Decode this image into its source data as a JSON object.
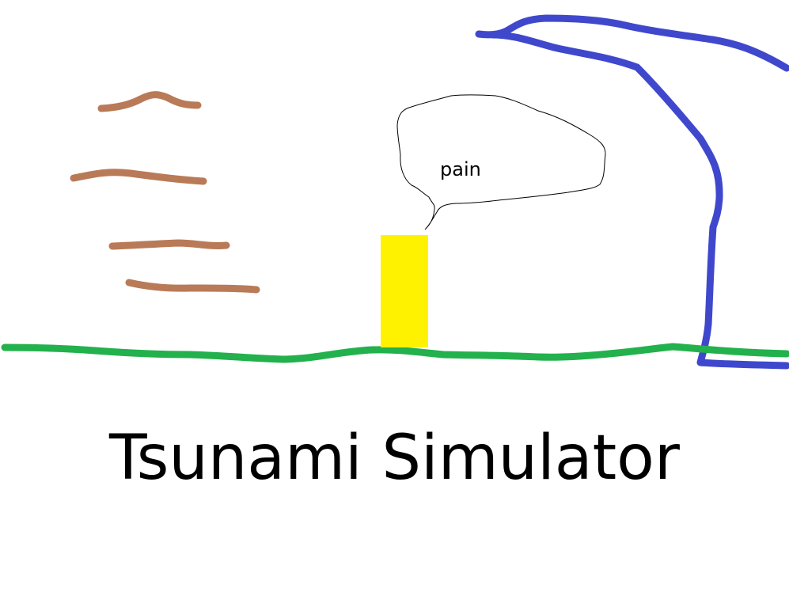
{
  "game": {
    "title": "Tsunami Simulator"
  },
  "character": {
    "speech": "pain",
    "color": "#fff200"
  },
  "colors": {
    "ground": "#22b14c",
    "wave": "#3f48cc",
    "wind": "#b97a57",
    "background": "#ffffff"
  }
}
